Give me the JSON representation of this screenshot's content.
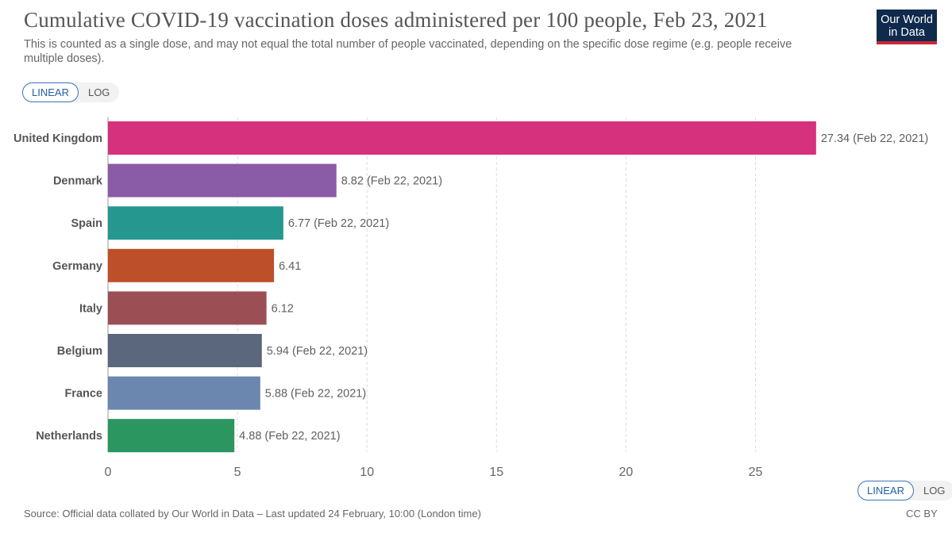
{
  "header": {
    "title": "Cumulative COVID-19 vaccination doses administered per 100 people, Feb 23, 2021",
    "subtitle": "This is counted as a single dose, and may not equal the total number of people vaccinated, depending on the specific dose regime (e.g. people receive multiple doses).",
    "logo_line1": "Our World",
    "logo_line2": "in Data"
  },
  "scale_toggle": {
    "linear_label": "LINEAR",
    "log_label": "LOG",
    "selected": "LINEAR"
  },
  "footer": {
    "source": "Source: Official data collated by Our World in Data – Last updated 24 February, 10:00 (London time)",
    "license": "CC BY"
  },
  "colors": {
    "logo_bg": "#0f2a4d",
    "logo_accent": "#c8283a",
    "active_toggle": "#3b73b9"
  },
  "chart_data": {
    "type": "bar",
    "orientation": "horizontal",
    "categories": [
      "United Kingdom",
      "Denmark",
      "Spain",
      "Germany",
      "Italy",
      "Belgium",
      "France",
      "Netherlands"
    ],
    "values": [
      27.34,
      8.82,
      6.77,
      6.41,
      6.12,
      5.94,
      5.88,
      4.88
    ],
    "value_labels": [
      "27.34 (Feb 22, 2021)",
      "8.82 (Feb 22, 2021)",
      "6.77 (Feb 22, 2021)",
      "6.41",
      "6.12",
      "5.94 (Feb 22, 2021)",
      "5.88 (Feb 22, 2021)",
      "4.88 (Feb 22, 2021)"
    ],
    "bar_colors": [
      "#d6317c",
      "#8a5ba6",
      "#25978f",
      "#bd4f2a",
      "#9b4f55",
      "#5a677c",
      "#6b87b0",
      "#2c9660"
    ],
    "xlim": [
      0,
      27.34
    ],
    "xticks": [
      0,
      5,
      10,
      15,
      20,
      25
    ],
    "grid": "vertical dashed",
    "xlabel": "",
    "ylabel": ""
  }
}
